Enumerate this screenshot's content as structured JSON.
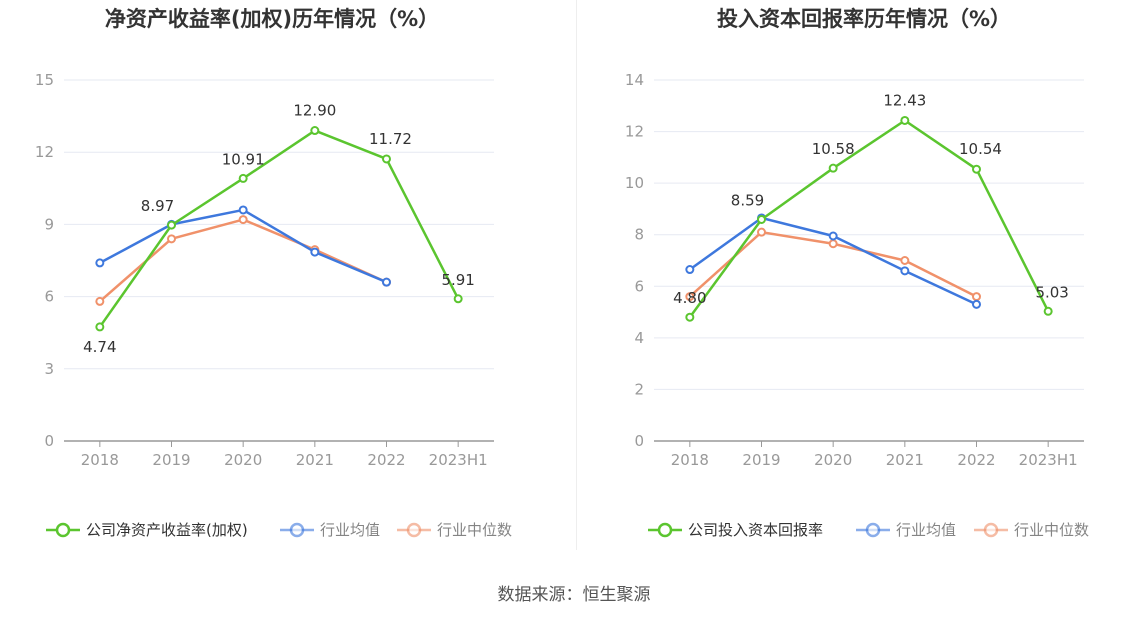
{
  "source_text": "数据来源：恒生聚源",
  "colors": {
    "company": "#5bc52f",
    "avg": "#3e78dd",
    "median": "#f0916a",
    "grid": "#e6e9f2",
    "axis": "#999999"
  },
  "chart_data": [
    {
      "type": "line",
      "title": "净资产收益率(加权)历年情况（%）",
      "categories": [
        "2018",
        "2019",
        "2020",
        "2021",
        "2022",
        "2023H1"
      ],
      "ylim": [
        0,
        15
      ],
      "yticks": [
        0,
        3,
        6,
        9,
        12,
        15
      ],
      "ytick_labels": [
        "0",
        "3",
        "6",
        "9",
        "12",
        "15"
      ],
      "grid": true,
      "legend": "bottom",
      "series": [
        {
          "name": "公司净资产收益率(加权)",
          "key": "company",
          "values": [
            4.74,
            8.97,
            10.91,
            12.9,
            11.72,
            5.91
          ],
          "labels": [
            "4.74",
            "8.97",
            "10.91",
            "12.90",
            "11.72",
            "5.91"
          ]
        },
        {
          "name": "行业均值",
          "key": "avg",
          "values": [
            7.4,
            9.0,
            9.6,
            7.85,
            6.6,
            null
          ]
        },
        {
          "name": "行业中位数",
          "key": "median",
          "values": [
            5.8,
            8.4,
            9.2,
            7.95,
            6.6,
            null
          ]
        }
      ]
    },
    {
      "type": "line",
      "title": "投入资本回报率历年情况（%）",
      "categories": [
        "2018",
        "2019",
        "2020",
        "2021",
        "2022",
        "2023H1"
      ],
      "ylim": [
        0,
        14
      ],
      "yticks": [
        0,
        2,
        4,
        6,
        8,
        10,
        12,
        14
      ],
      "ytick_labels": [
        "0",
        "2",
        "4",
        "6",
        "8",
        "10",
        "12",
        "14"
      ],
      "grid": true,
      "legend": "bottom",
      "series": [
        {
          "name": "公司投入资本回报率",
          "key": "company",
          "values": [
            4.8,
            8.59,
            10.58,
            12.43,
            10.54,
            5.03
          ],
          "labels": [
            "4.80",
            "8.59",
            "10.58",
            "12.43",
            "10.54",
            "5.03"
          ]
        },
        {
          "name": "行业均值",
          "key": "avg",
          "values": [
            6.65,
            8.65,
            7.95,
            6.6,
            5.3,
            null
          ]
        },
        {
          "name": "行业中位数",
          "key": "median",
          "values": [
            5.6,
            8.1,
            7.65,
            7.0,
            5.6,
            null
          ]
        }
      ]
    }
  ]
}
